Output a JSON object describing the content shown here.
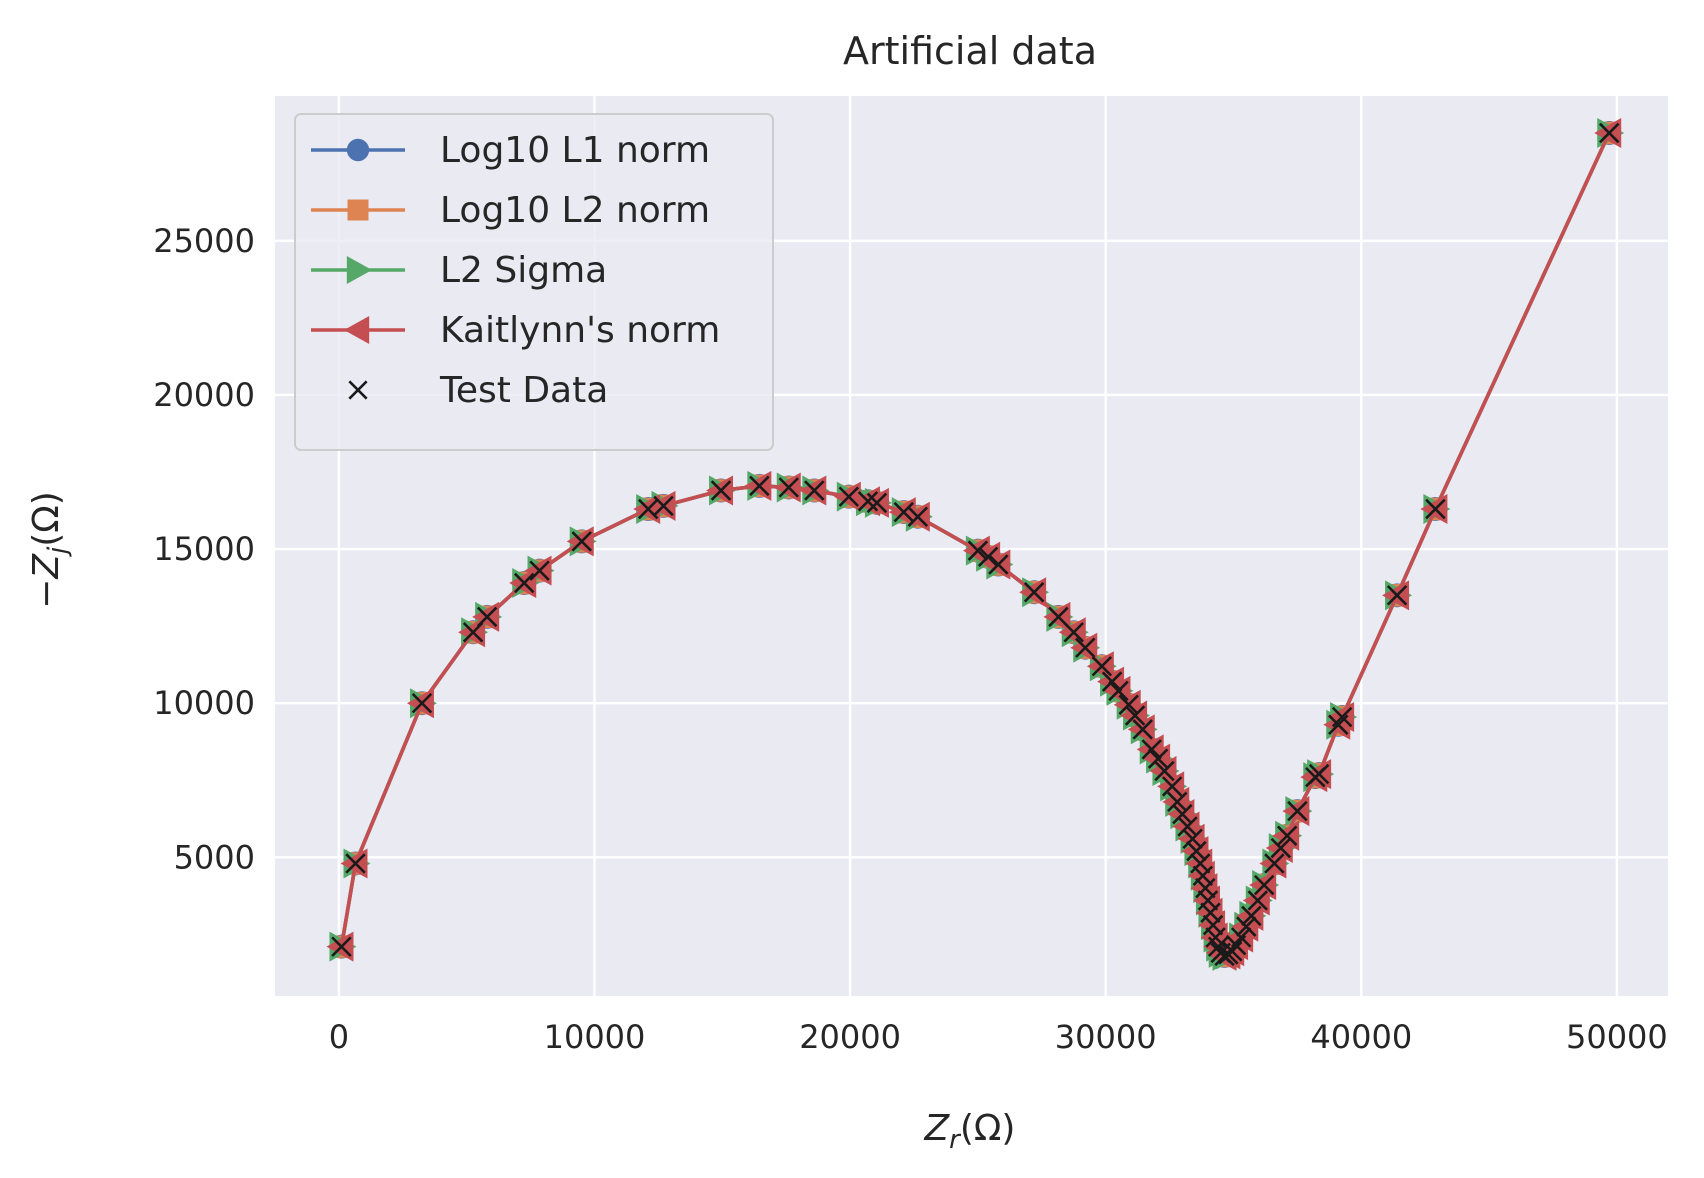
{
  "chart_data": {
    "type": "line",
    "title": "Artificial data",
    "xlabel": {
      "base": "Z",
      "sub": "r",
      "unit": "(Ω)"
    },
    "ylabel": {
      "prefix": "−",
      "base": "Z",
      "sub": "j",
      "unit": "(Ω)"
    },
    "xlim": [
      -2500,
      52000
    ],
    "ylim": [
      500,
      29700
    ],
    "xticks": [
      0,
      10000,
      20000,
      30000,
      40000,
      50000
    ],
    "xtick_labels": [
      "0",
      "10000",
      "20000",
      "30000",
      "40000",
      "50000"
    ],
    "yticks": [
      5000,
      10000,
      15000,
      20000,
      25000
    ],
    "ytick_labels": [
      "5000",
      "10000",
      "15000",
      "20000",
      "25000"
    ],
    "grid": true,
    "legend_position": "upper-left",
    "series": [
      {
        "name": "Log10 L1 norm",
        "color": "#4c72b0",
        "marker": "circle",
        "line": true
      },
      {
        "name": "Log10 L2 norm",
        "color": "#dd8452",
        "marker": "square",
        "line": true
      },
      {
        "name": "L2 Sigma",
        "color": "#55a868",
        "marker": "triangle-right",
        "line": true
      },
      {
        "name": "Kaitlynn's norm",
        "color": "#c44e52",
        "marker": "triangle-left",
        "line": true
      },
      {
        "name": "Test Data",
        "color": "#1a1a1a",
        "marker": "x",
        "line": false
      }
    ],
    "points": [
      [
        100,
        2100
      ],
      [
        650,
        4800
      ],
      [
        3250,
        10000
      ],
      [
        5250,
        12300
      ],
      [
        5800,
        12800
      ],
      [
        7250,
        13900
      ],
      [
        7850,
        14300
      ],
      [
        9500,
        15250
      ],
      [
        12100,
        16300
      ],
      [
        12700,
        16400
      ],
      [
        14950,
        16900
      ],
      [
        16450,
        17050
      ],
      [
        17600,
        17000
      ],
      [
        18600,
        16900
      ],
      [
        19950,
        16700
      ],
      [
        20700,
        16550
      ],
      [
        21050,
        16500
      ],
      [
        22100,
        16200
      ],
      [
        22650,
        16050
      ],
      [
        25000,
        14950
      ],
      [
        25400,
        14750
      ],
      [
        25800,
        14500
      ],
      [
        27200,
        13600
      ],
      [
        28150,
        12800
      ],
      [
        28750,
        12300
      ],
      [
        29200,
        11800
      ],
      [
        29850,
        11200
      ],
      [
        30250,
        10700
      ],
      [
        30500,
        10400
      ],
      [
        30900,
        9950
      ],
      [
        31150,
        9600
      ],
      [
        31450,
        9150
      ],
      [
        31800,
        8500
      ],
      [
        32050,
        8200
      ],
      [
        32300,
        7800
      ],
      [
        32600,
        7300
      ],
      [
        32800,
        6800
      ],
      [
        33000,
        6400
      ],
      [
        33200,
        6000
      ],
      [
        33400,
        5600
      ],
      [
        33550,
        5200
      ],
      [
        33700,
        4800
      ],
      [
        33800,
        4400
      ],
      [
        33900,
        4000
      ],
      [
        34000,
        3600
      ],
      [
        34100,
        3200
      ],
      [
        34200,
        2800
      ],
      [
        34300,
        2400
      ],
      [
        34400,
        2100
      ],
      [
        34500,
        1900
      ],
      [
        34650,
        1800
      ],
      [
        34800,
        1850
      ],
      [
        34950,
        1950
      ],
      [
        35100,
        2150
      ],
      [
        35300,
        2400
      ],
      [
        35500,
        2750
      ],
      [
        35700,
        3100
      ],
      [
        35950,
        3600
      ],
      [
        36200,
        4100
      ],
      [
        36600,
        4800
      ],
      [
        36850,
        5300
      ],
      [
        37100,
        5700
      ],
      [
        37500,
        6500
      ],
      [
        38200,
        7600
      ],
      [
        38350,
        7700
      ],
      [
        39100,
        9300
      ],
      [
        39250,
        9550
      ],
      [
        41400,
        13500
      ],
      [
        42900,
        16300
      ],
      [
        49700,
        28500
      ]
    ]
  }
}
